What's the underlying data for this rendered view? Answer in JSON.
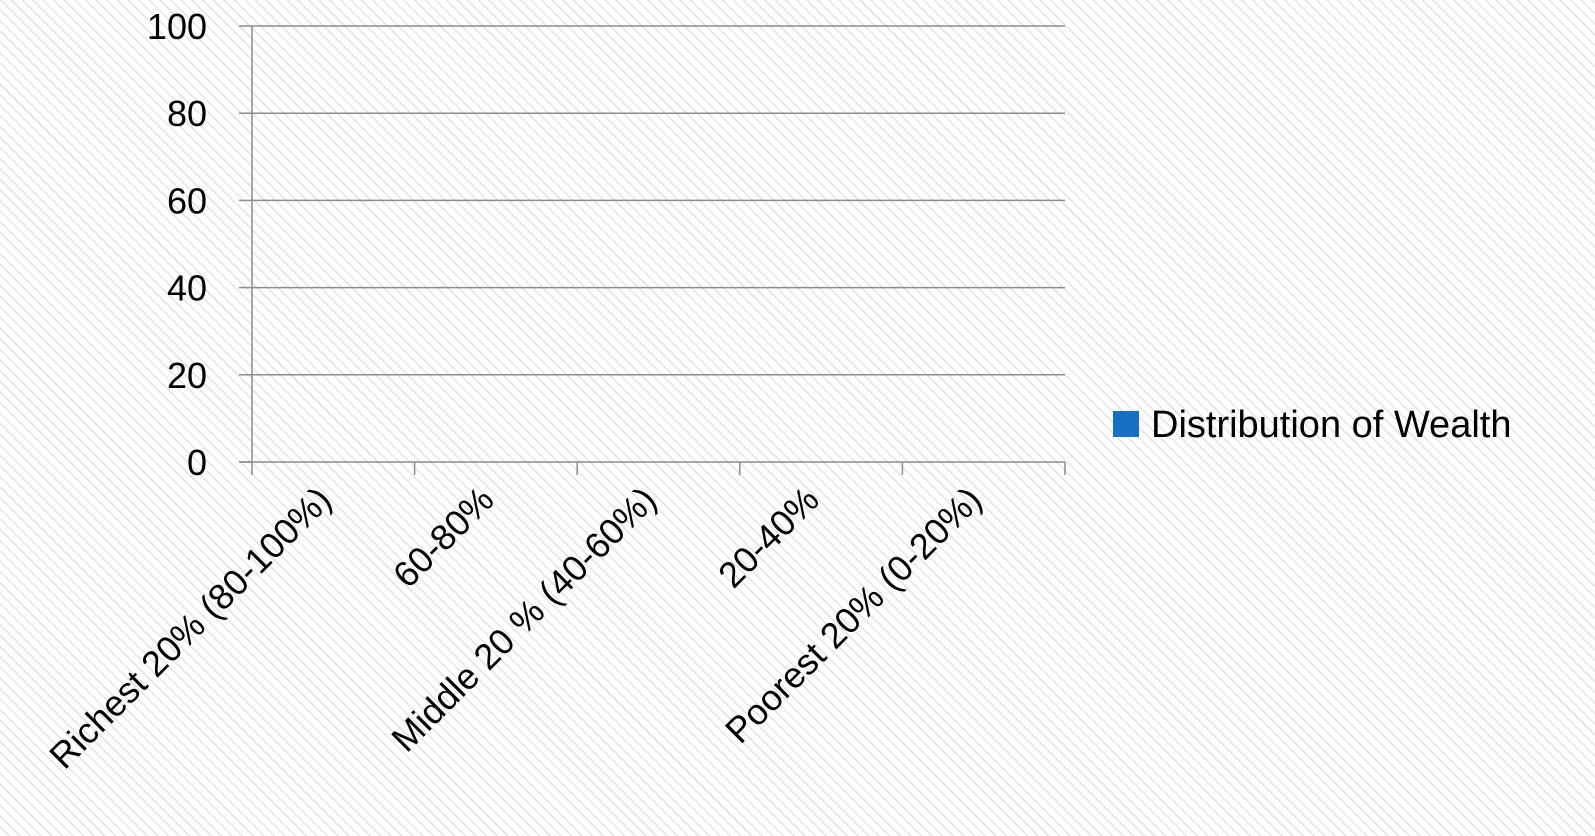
{
  "chart_data": {
    "type": "bar",
    "title": "",
    "xlabel": "",
    "ylabel": "",
    "categories": [
      "Richest 20% (80-100%)",
      "60-80%",
      "Middle 20 % (40-60%)",
      "20-40%",
      "Poorest 20% (0-20%)"
    ],
    "series": [
      {
        "name": "Distribution of Wealth",
        "values": [
          null,
          null,
          null,
          null,
          null
        ],
        "color": "#1570c4"
      }
    ],
    "y_ticks": [
      "0",
      "20",
      "40",
      "60",
      "80",
      "100"
    ],
    "ylim": [
      0,
      100
    ],
    "grid": true,
    "gridline_color": "#8c8c8c",
    "legend": {
      "position": "right",
      "entries": [
        "Distribution of Wealth"
      ]
    }
  }
}
